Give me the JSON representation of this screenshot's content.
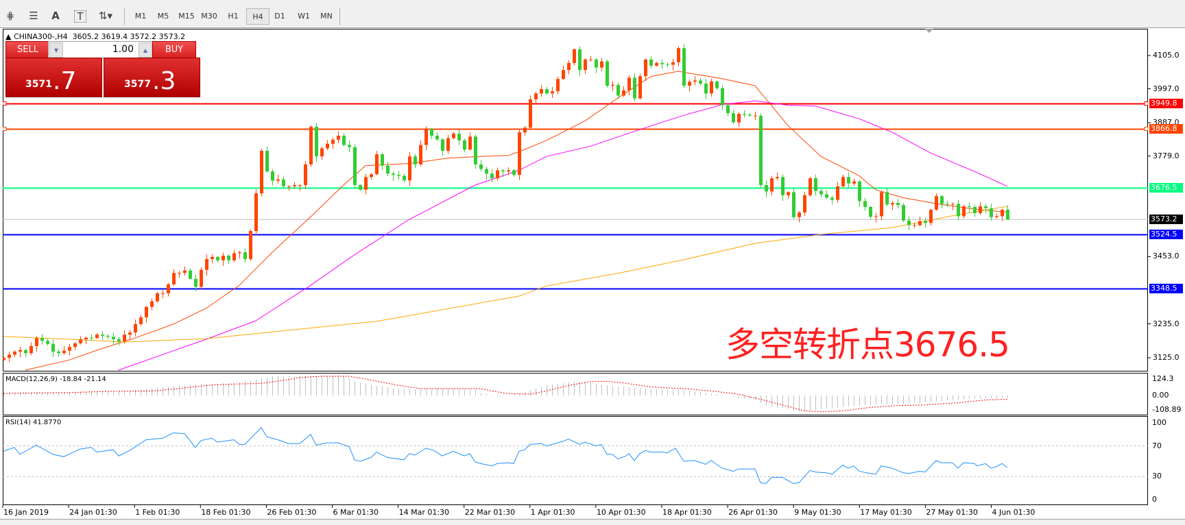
{
  "toolbar": {
    "tools": [
      {
        "name": "fibonacci-expansion-icon",
        "glyph": "⋕"
      },
      {
        "name": "fibonacci-fan-icon",
        "glyph": "☰"
      },
      {
        "name": "text-label-icon",
        "glyph": "A"
      },
      {
        "name": "text-box-icon",
        "glyph": "T"
      },
      {
        "name": "arrows-icon",
        "glyph": "⇅▾"
      }
    ],
    "timeframes": [
      "M1",
      "M5",
      "M15",
      "M30",
      "H1",
      "H4",
      "D1",
      "W1",
      "MN"
    ],
    "selected_timeframe": "H4"
  },
  "header": {
    "symbol": "CHINA300-,H4",
    "ohlc": "3605.2 3619.4 3572.2 3573.2"
  },
  "trade_panel": {
    "sell_label": "SELL",
    "buy_label": "BUY",
    "lot": "1.00",
    "sell_price_main": "3571",
    "sell_price_big": ".7",
    "buy_price_main": "3577",
    "buy_price_big": ".3"
  },
  "annotation": "多空转折点3676.5",
  "price_axis": [
    "4105.0",
    "3997.0",
    "3887.0",
    "3779.0",
    "3453.0",
    "3235.0",
    "3125.0"
  ],
  "price_axis_values": [
    4105.0,
    3997.0,
    3887.0,
    3779.0,
    3453.0,
    3235.0,
    3125.0
  ],
  "levels": [
    {
      "label": "3949.8",
      "value": 3949.8,
      "color": "#ff0000"
    },
    {
      "label": "3866.8",
      "value": 3866.8,
      "color": "#ff4500"
    },
    {
      "label": "3676.5",
      "value": 3676.5,
      "color": "#00ff7f"
    },
    {
      "label": "3524.5",
      "value": 3524.5,
      "color": "#0000ff"
    },
    {
      "label": "3348.5",
      "value": 3348.5,
      "color": "#0000ff"
    }
  ],
  "current_price": {
    "label": "3573.2",
    "value": 3573.2
  },
  "time_axis": [
    "16 Jan 2019",
    "24 Jan 01:30",
    "1 Feb 01:30",
    "18 Feb 01:30",
    "26 Feb 01:30",
    "6 Mar 01:30",
    "14 Mar 01:30",
    "22 Mar 01:30",
    "1 Apr 01:30",
    "10 Apr 01:30",
    "18 Apr 01:30",
    "26 Apr 01:30",
    "9 May 01:30",
    "17 May 01:30",
    "27 May 01:30",
    "4 Jun 01:30"
  ],
  "colors": {
    "bull": "#ff4500",
    "bear": "#32cd32",
    "ma_fast": "#ff4500",
    "ma_mid": "#ff00ff",
    "ma_slow": "#ffa500",
    "rsi": "#1e90ff",
    "macd_hist": "#c0c0c0",
    "macd_signal": "#ff0000"
  },
  "chart_data": {
    "type": "candlestick",
    "first_open": 3118,
    "last_bar": {
      "open": 3605.2,
      "high": 3619.4,
      "low": 3572.2,
      "close": 3573.2
    },
    "closes": [
      3125,
      3135,
      3145,
      3150,
      3140,
      3163,
      3189,
      3180,
      3170,
      3145,
      3140,
      3148,
      3160,
      3172,
      3185,
      3190,
      3189,
      3200,
      3196,
      3193,
      3185,
      3178,
      3200,
      3207,
      3234,
      3256,
      3290,
      3308,
      3334,
      3334,
      3363,
      3400,
      3400,
      3408,
      3381,
      3355,
      3410,
      3445,
      3452,
      3441,
      3456,
      3441,
      3464,
      3467,
      3445,
      3536,
      3658,
      3796,
      3729,
      3699,
      3703,
      3681,
      3681,
      3685,
      3685,
      3752,
      3874,
      3778,
      3804,
      3819,
      3832,
      3845,
      3815,
      3808,
      3685,
      3670,
      3711,
      3720,
      3785,
      3748,
      3722,
      3718,
      3715,
      3700,
      3778,
      3752,
      3815,
      3867,
      3845,
      3833,
      3796,
      3837,
      3852,
      3830,
      3800,
      3842,
      3752,
      3737,
      3722,
      3707,
      3733,
      3729,
      3733,
      3718,
      3856,
      3871,
      3963,
      3982,
      3996,
      3982,
      3989,
      4029,
      4058,
      4081,
      4125,
      4058,
      4092,
      4092,
      4066,
      4086,
      4007,
      4010,
      3975,
      3992,
      4033,
      3966,
      4038,
      4092,
      4072,
      4081,
      4077,
      4075,
      4083,
      4129,
      4007,
      4020,
      4024,
      4014,
      3982,
      4021,
      3999,
      3944,
      3918,
      3888,
      3916,
      3913,
      3910,
      3910,
      3685,
      3664,
      3707,
      3711,
      3652,
      3662,
      3581,
      3596,
      3652,
      3707,
      3666,
      3655,
      3644,
      3637,
      3681,
      3711,
      3690,
      3697,
      3633,
      3614,
      3582,
      3584,
      3662,
      3622,
      3627,
      3620,
      3570,
      3555,
      3555,
      3568,
      3562,
      3605,
      3649,
      3624,
      3622,
      3624,
      3584,
      3616,
      3614,
      3594,
      3616,
      3610,
      3581,
      3584,
      3605.2,
      3573.2
    ],
    "moving_averages": [
      {
        "color": "#ff4500",
        "points": [
          [
            4,
            3085
          ],
          [
            12,
            3118
          ],
          [
            18,
            3155
          ],
          [
            24,
            3189
          ],
          [
            31,
            3234
          ],
          [
            37,
            3286
          ],
          [
            43,
            3360
          ],
          [
            49,
            3467
          ],
          [
            56,
            3582
          ],
          [
            62,
            3685
          ],
          [
            66,
            3748
          ],
          [
            74,
            3755
          ],
          [
            81,
            3772
          ],
          [
            87,
            3778
          ],
          [
            92,
            3781
          ],
          [
            94,
            3793
          ],
          [
            99,
            3830
          ],
          [
            106,
            3893
          ],
          [
            112,
            3967
          ],
          [
            118,
            4037
          ],
          [
            123,
            4054
          ],
          [
            131,
            4030
          ],
          [
            137,
            4007
          ],
          [
            143,
            3878
          ],
          [
            149,
            3778
          ],
          [
            156,
            3715
          ],
          [
            159,
            3670
          ],
          [
            164,
            3644
          ],
          [
            171,
            3622
          ],
          [
            177,
            3607
          ],
          [
            183,
            3597
          ]
        ]
      },
      {
        "color": "#ff00ff",
        "points": [
          [
            21,
            3085
          ],
          [
            31,
            3148
          ],
          [
            37,
            3185
          ],
          [
            46,
            3245
          ],
          [
            56,
            3360
          ],
          [
            64,
            3459
          ],
          [
            74,
            3574
          ],
          [
            86,
            3685
          ],
          [
            94,
            3733
          ],
          [
            99,
            3778
          ],
          [
            107,
            3811
          ],
          [
            112,
            3841
          ],
          [
            117,
            3871
          ],
          [
            124,
            3911
          ],
          [
            131,
            3946
          ],
          [
            137,
            3958
          ],
          [
            143,
            3944
          ],
          [
            148,
            3941
          ],
          [
            156,
            3900
          ],
          [
            162,
            3856
          ],
          [
            169,
            3789
          ],
          [
            177,
            3729
          ],
          [
            183,
            3681
          ]
        ]
      },
      {
        "color": "#ffa500",
        "points": [
          [
            0,
            3194
          ],
          [
            12,
            3185
          ],
          [
            22,
            3176
          ],
          [
            37,
            3187
          ],
          [
            49,
            3209
          ],
          [
            68,
            3243
          ],
          [
            94,
            3325
          ],
          [
            99,
            3358
          ],
          [
            112,
            3399
          ],
          [
            124,
            3443
          ],
          [
            137,
            3496
          ],
          [
            149,
            3525
          ],
          [
            162,
            3547
          ],
          [
            174,
            3589
          ],
          [
            183,
            3616
          ]
        ]
      }
    ],
    "ylim": [
      3085,
      4195
    ]
  },
  "macd": {
    "label": "MACD(12,26,9) -18.84 -21.14",
    "axis": [
      "124.3",
      "0.00",
      "-108.89"
    ],
    "axis_values": [
      124.3,
      0,
      -108.89
    ],
    "histogram": [
      [
        0,
        20
      ],
      [
        12,
        25
      ],
      [
        24,
        41
      ],
      [
        28,
        57
      ],
      [
        33,
        78
      ],
      [
        37,
        88
      ],
      [
        42,
        93
      ],
      [
        46,
        119
      ],
      [
        49,
        145
      ],
      [
        52,
        150
      ],
      [
        55,
        150
      ],
      [
        58,
        150
      ],
      [
        62,
        150
      ],
      [
        64,
        104
      ],
      [
        67,
        78
      ],
      [
        71,
        57
      ],
      [
        74,
        47
      ],
      [
        81,
        52
      ],
      [
        86,
        47
      ],
      [
        87,
        20
      ],
      [
        89,
        5
      ],
      [
        92,
        0
      ],
      [
        94,
        15
      ],
      [
        97,
        55
      ],
      [
        99,
        78
      ],
      [
        102,
        95
      ],
      [
        104,
        104
      ],
      [
        107,
        100
      ],
      [
        109,
        83
      ],
      [
        112,
        67
      ],
      [
        117,
        52
      ],
      [
        122,
        47
      ],
      [
        126,
        35
      ],
      [
        129,
        15
      ],
      [
        132,
        0
      ],
      [
        134,
        -20
      ],
      [
        137,
        -34
      ],
      [
        139,
        -78
      ],
      [
        143,
        -104
      ],
      [
        145,
        -124
      ],
      [
        147,
        -114
      ],
      [
        149,
        -104
      ],
      [
        153,
        -86
      ],
      [
        157,
        -72
      ],
      [
        162,
        -69
      ],
      [
        167,
        -55
      ],
      [
        172,
        -38
      ],
      [
        177,
        -24
      ],
      [
        183,
        -19
      ]
    ],
    "signal": [
      [
        0,
        16
      ],
      [
        12,
        22
      ],
      [
        19,
        31
      ],
      [
        27,
        34
      ],
      [
        31,
        48
      ],
      [
        34,
        62
      ],
      [
        38,
        79
      ],
      [
        42,
        86
      ],
      [
        47,
        91
      ],
      [
        51,
        114
      ],
      [
        54,
        135
      ],
      [
        58,
        145
      ],
      [
        63,
        145
      ],
      [
        67,
        117
      ],
      [
        72,
        76
      ],
      [
        76,
        52
      ],
      [
        82,
        52
      ],
      [
        87,
        52
      ],
      [
        89,
        34
      ],
      [
        92,
        14
      ],
      [
        96,
        10
      ],
      [
        99,
        34
      ],
      [
        103,
        76
      ],
      [
        107,
        104
      ],
      [
        110,
        107
      ],
      [
        113,
        95
      ],
      [
        118,
        64
      ],
      [
        124,
        52
      ],
      [
        129,
        34
      ],
      [
        134,
        10
      ],
      [
        138,
        -29
      ],
      [
        142,
        -72
      ],
      [
        146,
        -116
      ],
      [
        149,
        -124
      ],
      [
        153,
        -116
      ],
      [
        158,
        -90
      ],
      [
        163,
        -76
      ],
      [
        168,
        -72
      ],
      [
        174,
        -55
      ],
      [
        179,
        -34
      ],
      [
        183,
        -29
      ]
    ]
  },
  "rsi": {
    "label": "RSI(14) 41.8770",
    "axis": [
      "100",
      "70",
      "30",
      "0"
    ],
    "axis_values": [
      100,
      70,
      30,
      0
    ],
    "levels": [
      70,
      30
    ],
    "points": [
      [
        0,
        63
      ],
      [
        2,
        68
      ],
      [
        3,
        59
      ],
      [
        6,
        71
      ],
      [
        9,
        59
      ],
      [
        11,
        56
      ],
      [
        14,
        66
      ],
      [
        16,
        68
      ],
      [
        17,
        62
      ],
      [
        20,
        65
      ],
      [
        21,
        57
      ],
      [
        23,
        64
      ],
      [
        26,
        78
      ],
      [
        29,
        80
      ],
      [
        31,
        87
      ],
      [
        33,
        86
      ],
      [
        35,
        68
      ],
      [
        36,
        77
      ],
      [
        38,
        80
      ],
      [
        39,
        75
      ],
      [
        42,
        78
      ],
      [
        43,
        72
      ],
      [
        44,
        72
      ],
      [
        47,
        94
      ],
      [
        48,
        82
      ],
      [
        50,
        78
      ],
      [
        52,
        73
      ],
      [
        54,
        73
      ],
      [
        56,
        85
      ],
      [
        57,
        71
      ],
      [
        59,
        74
      ],
      [
        61,
        74
      ],
      [
        63,
        69
      ],
      [
        64,
        52
      ],
      [
        65,
        50
      ],
      [
        67,
        55
      ],
      [
        68,
        62
      ],
      [
        70,
        55
      ],
      [
        73,
        52
      ],
      [
        74,
        60
      ],
      [
        75,
        58
      ],
      [
        77,
        67
      ],
      [
        78.5,
        64
      ],
      [
        80,
        57
      ],
      [
        82,
        63
      ],
      [
        84,
        57
      ],
      [
        85,
        60
      ],
      [
        86,
        49
      ],
      [
        87,
        47
      ],
      [
        89,
        44
      ],
      [
        90,
        47
      ],
      [
        92,
        48
      ],
      [
        93,
        47
      ],
      [
        94,
        63
      ],
      [
        95,
        65
      ],
      [
        96,
        72
      ],
      [
        98,
        73
      ],
      [
        99,
        70
      ],
      [
        102,
        76
      ],
      [
        103,
        79
      ],
      [
        105,
        72
      ],
      [
        106,
        75
      ],
      [
        108,
        70
      ],
      [
        109,
        72
      ],
      [
        110,
        59
      ],
      [
        111,
        59
      ],
      [
        112,
        53
      ],
      [
        113.5,
        57
      ],
      [
        114,
        60
      ],
      [
        115,
        51
      ],
      [
        116,
        60
      ],
      [
        117,
        64
      ],
      [
        118,
        62
      ],
      [
        120,
        62
      ],
      [
        121,
        61
      ],
      [
        122.5,
        67
      ],
      [
        124,
        50
      ],
      [
        126,
        51
      ],
      [
        128,
        46
      ],
      [
        129,
        51
      ],
      [
        131,
        41
      ],
      [
        133,
        37
      ],
      [
        134,
        40
      ],
      [
        137,
        40
      ],
      [
        138,
        22
      ],
      [
        139,
        21
      ],
      [
        140,
        29
      ],
      [
        142,
        29
      ],
      [
        144,
        21
      ],
      [
        145,
        22
      ],
      [
        147,
        38
      ],
      [
        148,
        36
      ],
      [
        150,
        35
      ],
      [
        151,
        33
      ],
      [
        153,
        45
      ],
      [
        154,
        41
      ],
      [
        155,
        44
      ],
      [
        156,
        37
      ],
      [
        158,
        34
      ],
      [
        159,
        33
      ],
      [
        160,
        44
      ],
      [
        162,
        41
      ],
      [
        164,
        35
      ],
      [
        165,
        34
      ],
      [
        167,
        37
      ],
      [
        168,
        36
      ],
      [
        170,
        51
      ],
      [
        171,
        48
      ],
      [
        173,
        48
      ],
      [
        174,
        41
      ],
      [
        175,
        48
      ],
      [
        177,
        47
      ],
      [
        177.5,
        44
      ],
      [
        179,
        47
      ],
      [
        180,
        41
      ],
      [
        181,
        43
      ],
      [
        182,
        47
      ],
      [
        183,
        42
      ]
    ]
  }
}
